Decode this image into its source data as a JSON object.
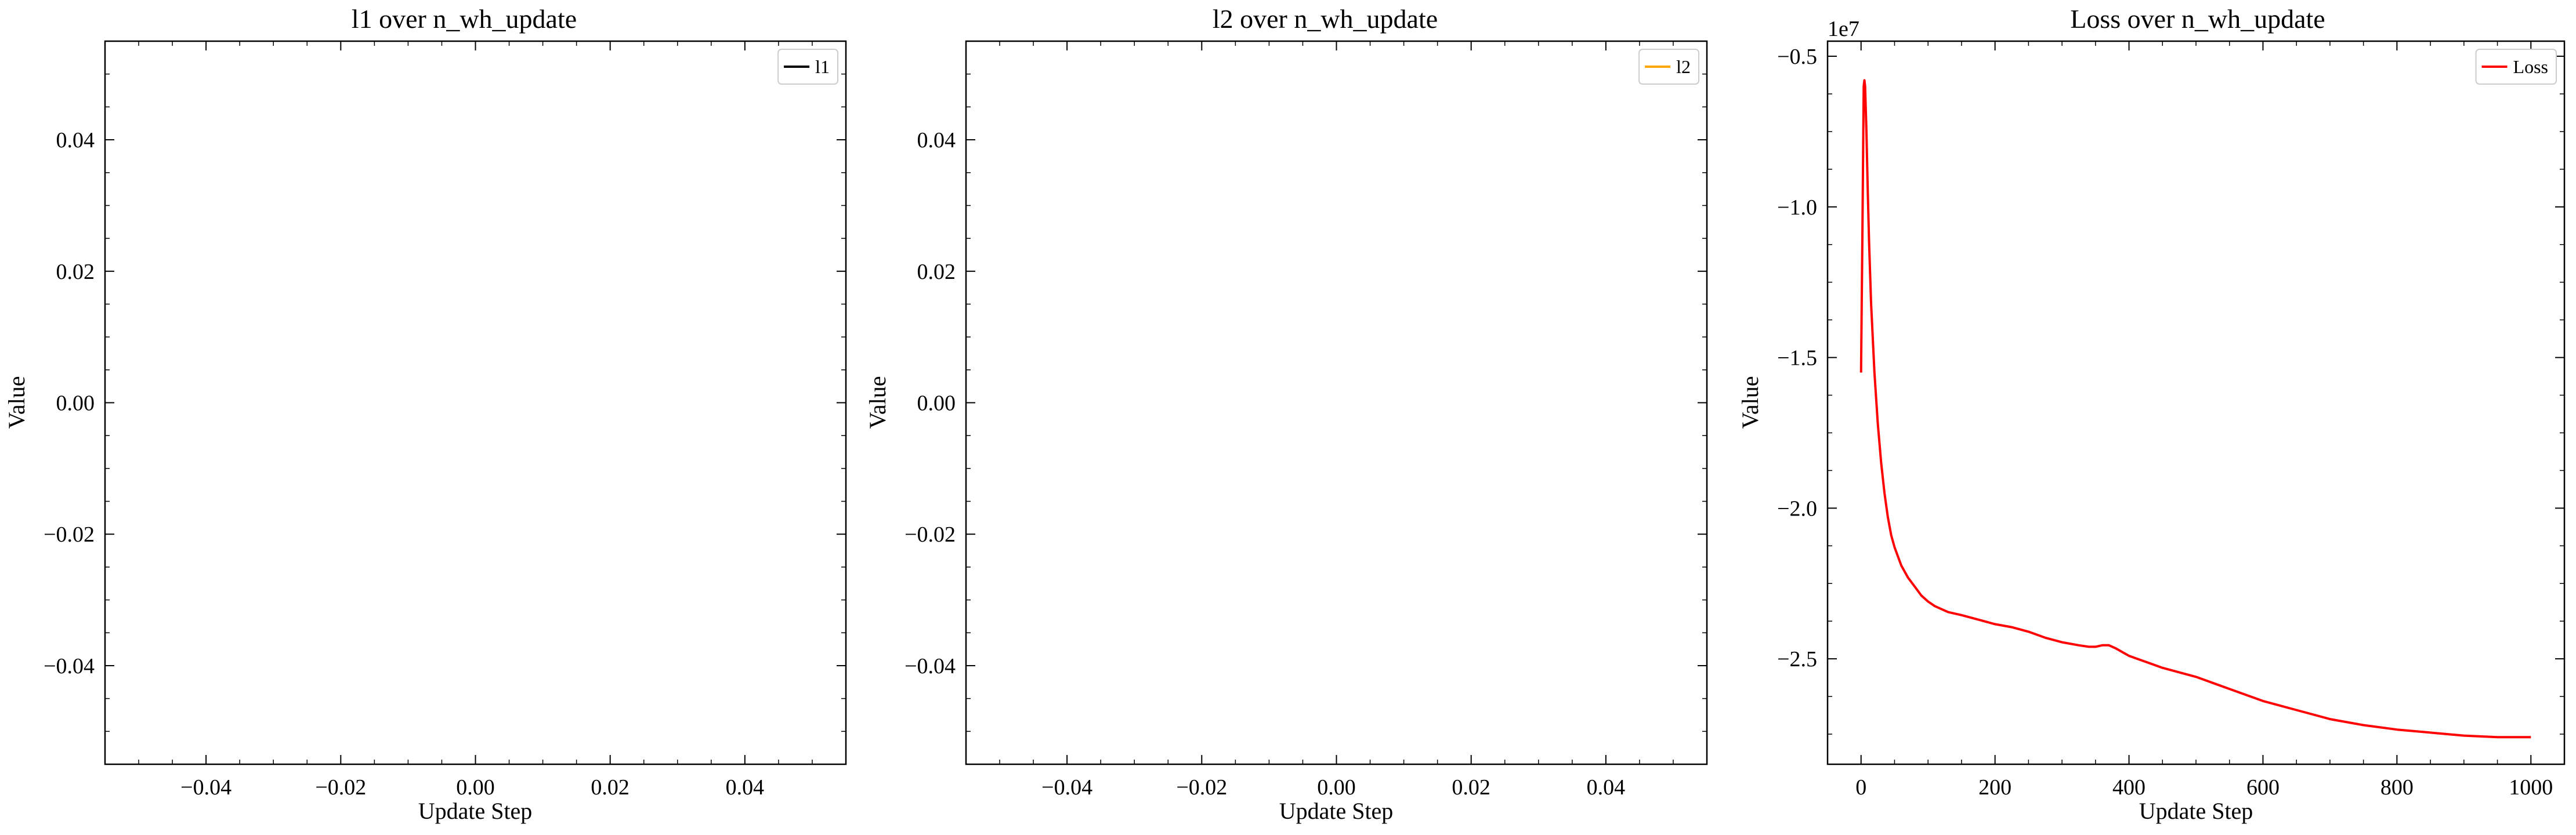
{
  "chart_data": [
    {
      "type": "line",
      "title": "l1 over n_wh_update",
      "xlabel": "Update Step",
      "ylabel": "Value",
      "xlim": [
        -0.055,
        0.055
      ],
      "ylim": [
        -0.055,
        0.055
      ],
      "xticks": [
        -0.04,
        -0.02,
        0.0,
        0.02,
        0.04
      ],
      "xtick_labels": [
        "−0.04",
        "−0.02",
        "0.00",
        "0.02",
        "0.04"
      ],
      "yticks": [
        -0.04,
        -0.02,
        0.0,
        0.02,
        0.04
      ],
      "ytick_labels": [
        "−0.04",
        "−0.02",
        "0.00",
        "0.02",
        "0.04"
      ],
      "legend": "top-right",
      "grid": false,
      "series": [
        {
          "name": "l1",
          "color": "#000000",
          "x": [],
          "y": []
        }
      ]
    },
    {
      "type": "line",
      "title": "l2 over n_wh_update",
      "xlabel": "Update Step",
      "ylabel": "Value",
      "xlim": [
        -0.055,
        0.055
      ],
      "ylim": [
        -0.055,
        0.055
      ],
      "xticks": [
        -0.04,
        -0.02,
        0.0,
        0.02,
        0.04
      ],
      "xtick_labels": [
        "−0.04",
        "−0.02",
        "0.00",
        "0.02",
        "0.04"
      ],
      "yticks": [
        -0.04,
        -0.02,
        0.0,
        0.02,
        0.04
      ],
      "ytick_labels": [
        "−0.04",
        "−0.02",
        "0.00",
        "0.02",
        "0.04"
      ],
      "legend": "top-right",
      "grid": false,
      "series": [
        {
          "name": "l2",
          "color": "#FFA500",
          "x": [],
          "y": []
        }
      ]
    },
    {
      "type": "line",
      "title": "Loss over n_wh_update",
      "xlabel": "Update Step",
      "ylabel": "Value",
      "offset_text": "1e7",
      "xlim": [
        -50,
        1050
      ],
      "ylim": [
        -2.85,
        -0.45
      ],
      "xticks": [
        0,
        200,
        400,
        600,
        800,
        1000
      ],
      "xtick_labels": [
        "0",
        "200",
        "400",
        "600",
        "800",
        "1000"
      ],
      "yticks": [
        -2.5,
        -2.0,
        -1.5,
        -1.0,
        -0.5
      ],
      "ytick_labels": [
        "−2.5",
        "−2.0",
        "−1.5",
        "−1.0",
        "−0.5"
      ],
      "legend": "top-right",
      "grid": false,
      "series": [
        {
          "name": "Loss",
          "color": "#FF0000",
          "x": [
            0,
            2,
            4,
            5,
            6,
            8,
            10,
            12,
            15,
            20,
            25,
            30,
            35,
            40,
            45,
            50,
            60,
            70,
            80,
            90,
            100,
            110,
            120,
            130,
            140,
            150,
            175,
            200,
            225,
            250,
            275,
            300,
            325,
            340,
            350,
            360,
            370,
            380,
            400,
            450,
            500,
            550,
            600,
            650,
            700,
            750,
            800,
            850,
            900,
            950,
            1000
          ],
          "y": [
            -1.55,
            -1.1,
            -0.6,
            -0.58,
            -0.6,
            -0.75,
            -0.95,
            -1.12,
            -1.32,
            -1.55,
            -1.72,
            -1.85,
            -1.95,
            -2.03,
            -2.09,
            -2.13,
            -2.19,
            -2.23,
            -2.26,
            -2.29,
            -2.31,
            -2.325,
            -2.335,
            -2.345,
            -2.35,
            -2.355,
            -2.37,
            -2.385,
            -2.395,
            -2.41,
            -2.43,
            -2.445,
            -2.455,
            -2.46,
            -2.46,
            -2.455,
            -2.455,
            -2.465,
            -2.49,
            -2.53,
            -2.56,
            -2.6,
            -2.64,
            -2.67,
            -2.7,
            -2.72,
            -2.735,
            -2.745,
            -2.755,
            -2.76,
            -2.76
          ]
        }
      ]
    }
  ]
}
